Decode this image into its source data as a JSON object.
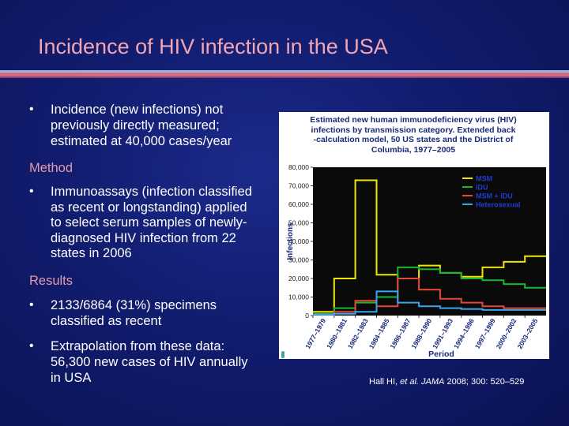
{
  "slide": {
    "title": "Incidence of HIV infection in the USA",
    "bullet_glyph": "•",
    "intro_lines": [
      "Incidence (new infections) not",
      "previously directly measured;",
      "estimated at 40,000 cases/year"
    ],
    "method_heading": "Method",
    "method_lines": [
      "Immunoassays (infection classified",
      "as recent or longstanding) applied",
      "to select serum samples of newly-",
      "diagnosed HIV infection from 22",
      "states in 2006"
    ],
    "results_heading": "Results",
    "result1_lines": [
      "2133/6864 (31%) specimens",
      "classified as recent"
    ],
    "result2_lines": [
      "Extrapolation from these data:",
      "56,300 new cases of HIV annually",
      "in USA"
    ],
    "citation": {
      "authors": "Hall HI, ",
      "etal": "et al.",
      "journal": " JAMA",
      "details": " 2008; 300: 520–529"
    },
    "colors": {
      "title": "#f2a6b4",
      "heading": "#e39aaa",
      "background": "#111c6e"
    }
  },
  "chart_data": {
    "type": "line",
    "title_lines": [
      "Estimated new human immunodeficiency virus (HIV)",
      "infections by transmission category. Extended back",
      "-calculation model, 50 US states and the District of",
      "Columbia, 1977–2005"
    ],
    "xlabel": "Period",
    "ylabel": "Infections",
    "ylim": [
      0,
      80000
    ],
    "yticks": [
      0,
      10000,
      20000,
      30000,
      40000,
      50000,
      60000,
      70000,
      80000
    ],
    "ytick_labels": [
      "0",
      "10,000",
      "20,000",
      "30,000",
      "40,000",
      "50,000",
      "60,000",
      "70,000",
      "80,000"
    ],
    "categories": [
      "1977–1979",
      "1980–1981",
      "1982–1983",
      "1984–1985",
      "1986–1987",
      "1988–1990",
      "1991–1993",
      "1994–1996",
      "1997–1999",
      "2000–2002",
      "2003–2005"
    ],
    "series": [
      {
        "name": "MSM",
        "color": "#f2e600",
        "values": [
          2000,
          20000,
          73000,
          22000,
          20000,
          27000,
          23000,
          21000,
          26000,
          29000,
          32000
        ]
      },
      {
        "name": "IDU",
        "color": "#18b82e",
        "values": [
          1000,
          4000,
          7000,
          10000,
          26000,
          25000,
          23000,
          20000,
          19000,
          17000,
          15000
        ]
      },
      {
        "name": "MSM + IDU",
        "color": "#e8463a",
        "values": [
          500,
          2000,
          8000,
          5000,
          20000,
          14000,
          9000,
          7000,
          5000,
          4000,
          4000
        ]
      },
      {
        "name": "Heterosexual",
        "color": "#35a6f0",
        "values": [
          500,
          1000,
          2000,
          13000,
          7000,
          5000,
          4000,
          3500,
          3000,
          3000,
          3000
        ]
      }
    ],
    "legend_position": "top-right",
    "grid": false
  }
}
